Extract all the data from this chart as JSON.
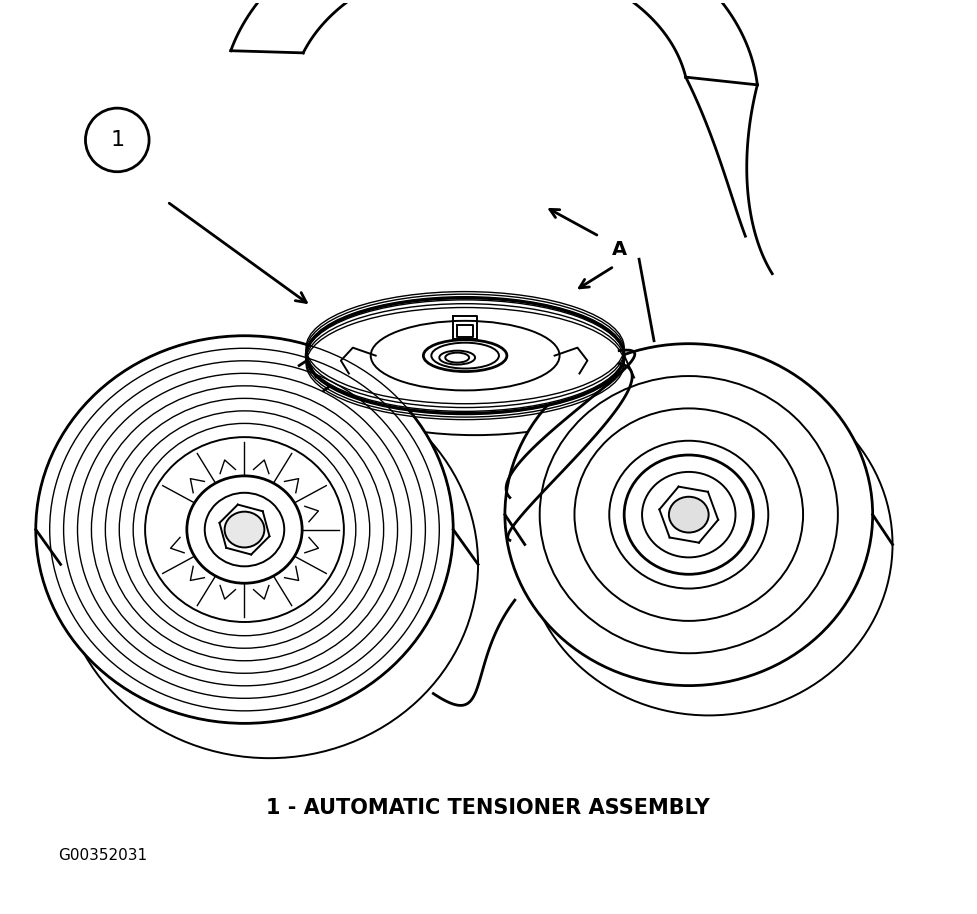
{
  "title": "1 - AUTOMATIC TENSIONER ASSEMBLY",
  "caption": "G00352031",
  "bg_color": "#ffffff",
  "line_color": "#000000",
  "title_fontsize": 15,
  "caption_fontsize": 11,
  "fig_width": 9.77,
  "fig_height": 9.14,
  "dpi": 100
}
